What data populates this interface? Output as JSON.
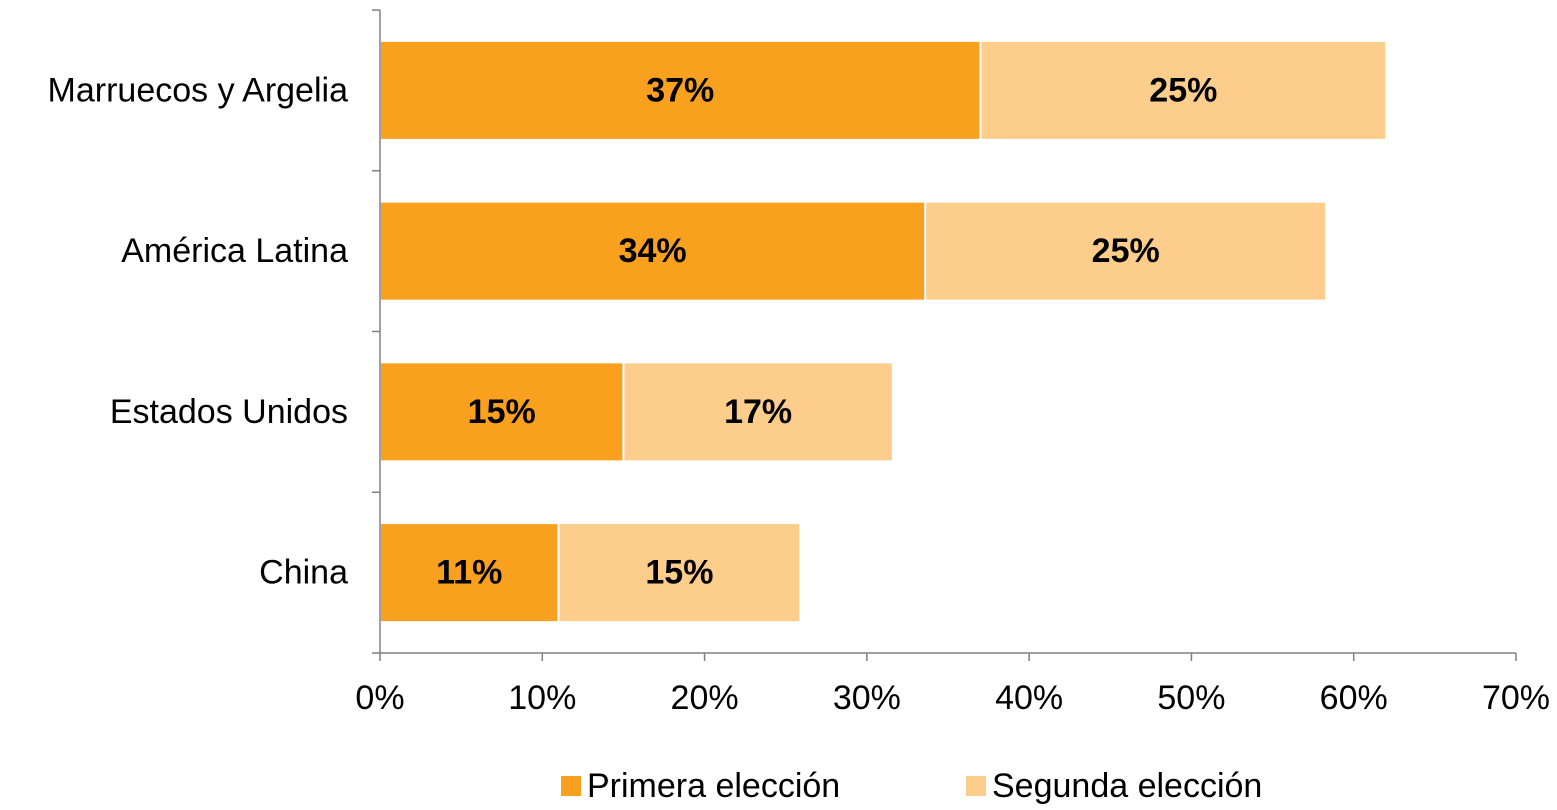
{
  "chart_data": {
    "type": "bar",
    "orientation": "horizontal",
    "stacked": true,
    "categories": [
      "Marruecos y Argelia",
      "América Latina",
      "Estados Unidos",
      "China"
    ],
    "series": [
      {
        "name": "Primera elección",
        "color": "#f9a11e",
        "values": [
          37,
          33.6,
          15,
          11
        ],
        "labels": [
          "37%",
          "34%",
          "15%",
          "11%"
        ]
      },
      {
        "name": "Segunda elección",
        "color": "#fdcd8c",
        "values": [
          25,
          24.7,
          16.6,
          14.9
        ],
        "labels": [
          "25%",
          "25%",
          "17%",
          "15%"
        ]
      }
    ],
    "xlim": [
      0,
      70
    ],
    "x_ticks": [
      "0%",
      "10%",
      "20%",
      "30%",
      "40%",
      "50%",
      "60%",
      "70%"
    ],
    "grid": false,
    "legend_position": "bottom",
    "title": "",
    "xlabel": "",
    "ylabel": ""
  }
}
